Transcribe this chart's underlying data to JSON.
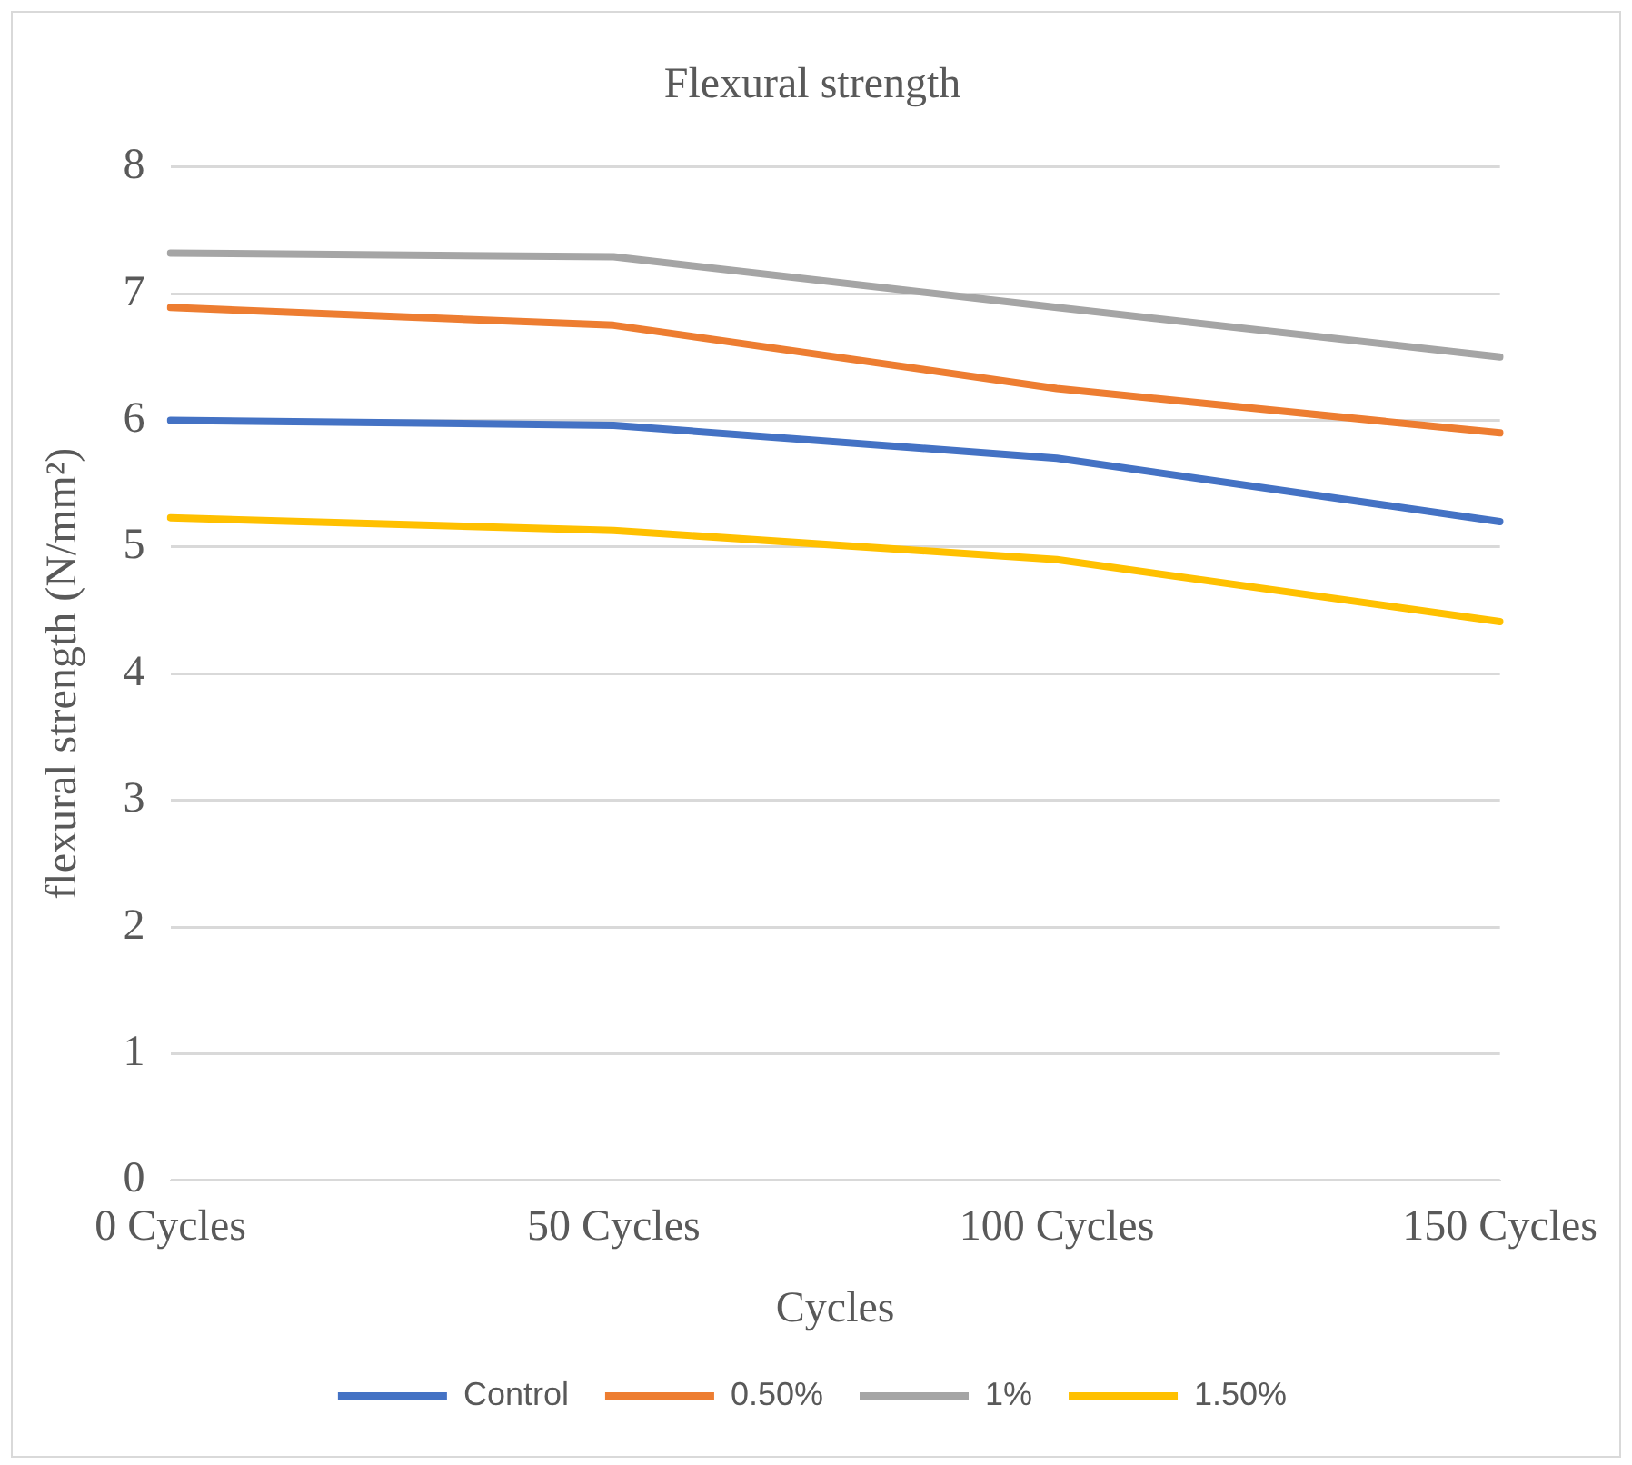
{
  "chart_data": {
    "type": "line",
    "title": "Flexural strength",
    "xlabel": "Cycles",
    "ylabel": "flexural strength (N/mm²)",
    "categories": [
      "0 Cycles",
      "50 Cycles",
      "100 Cycles",
      "150 Cycles"
    ],
    "series": [
      {
        "name": "Control",
        "color": "#4472c4",
        "values": [
          6.0,
          5.96,
          5.7,
          5.2
        ]
      },
      {
        "name": "0.50%",
        "color": "#ed7d31",
        "values": [
          6.89,
          6.75,
          6.25,
          5.9
        ]
      },
      {
        "name": "1%",
        "color": "#a5a5a5",
        "values": [
          7.32,
          7.29,
          6.89,
          6.5
        ]
      },
      {
        "name": "1.50%",
        "color": "#ffc000",
        "values": [
          5.23,
          5.13,
          4.9,
          4.41
        ]
      }
    ],
    "ylim": [
      0,
      8
    ],
    "yticks": [
      0,
      1,
      2,
      3,
      4,
      5,
      6,
      7,
      8
    ],
    "grid": "y",
    "legend": "bottom",
    "marker": "none",
    "line_style": "solid"
  }
}
